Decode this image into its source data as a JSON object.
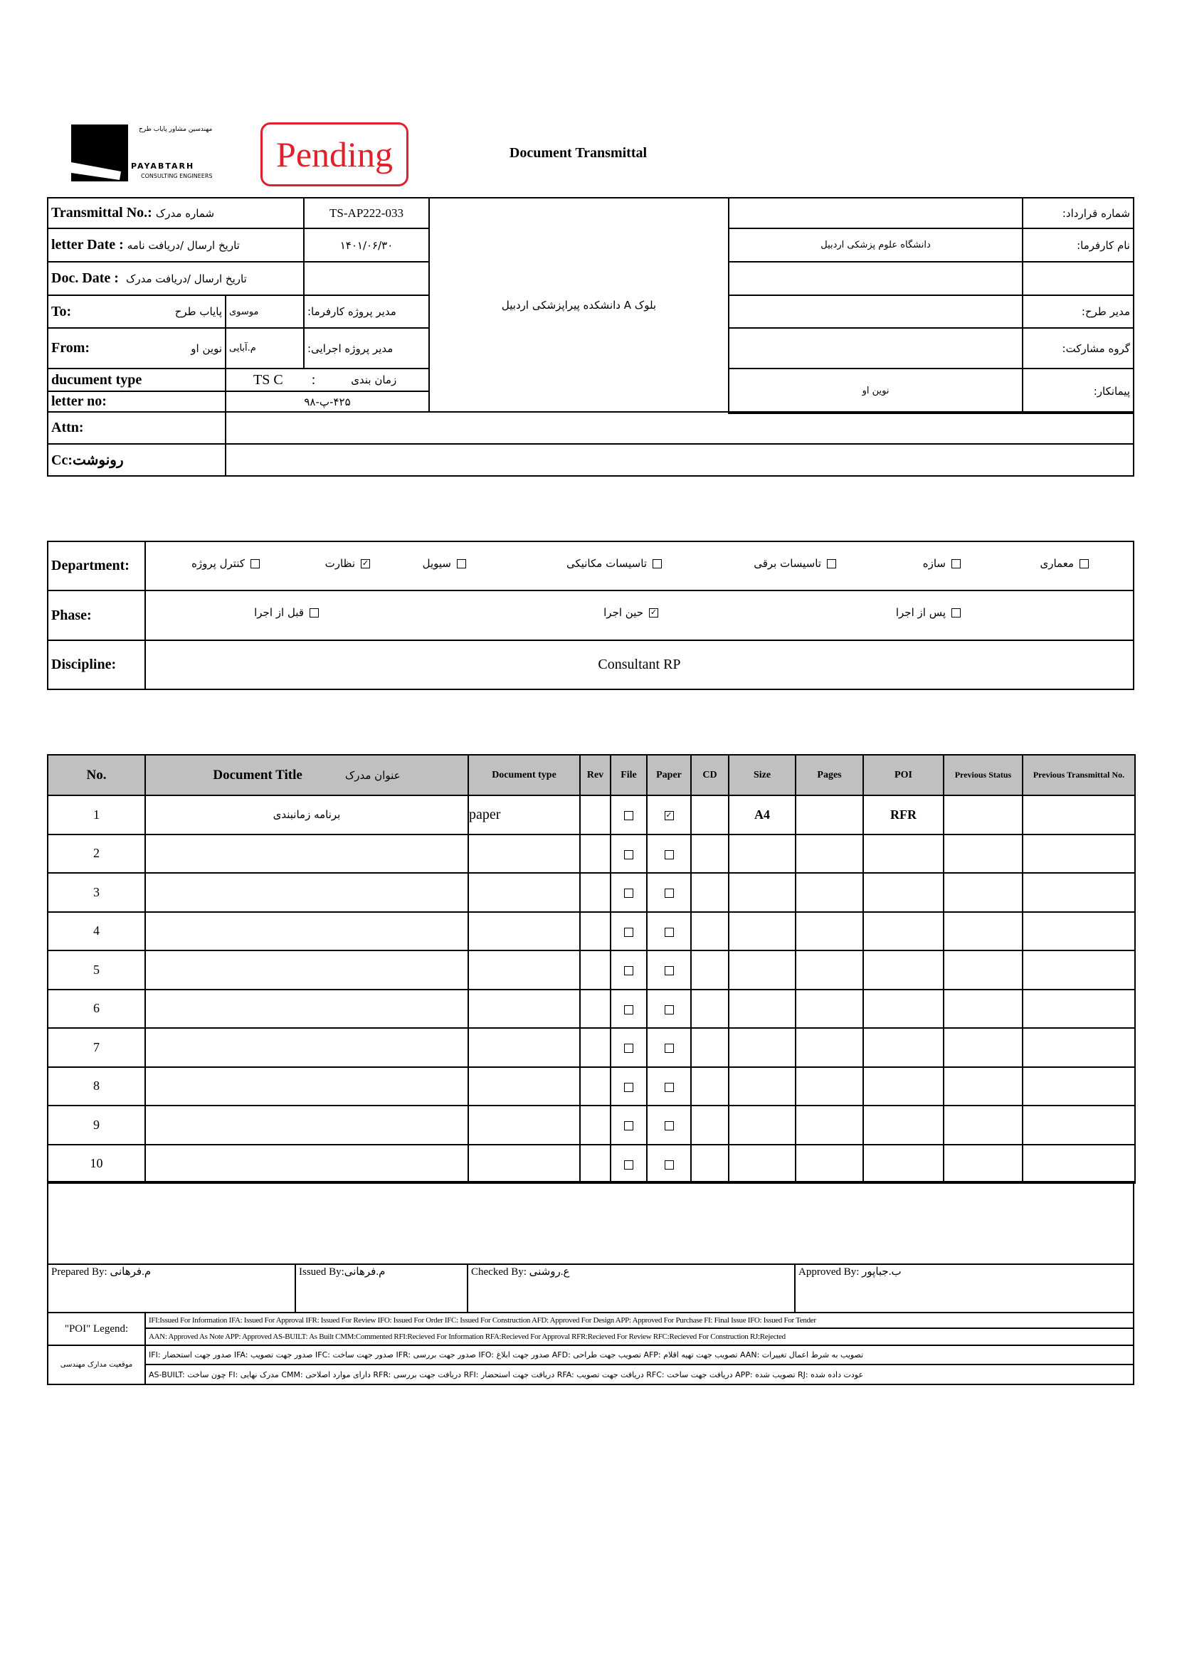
{
  "header": {
    "logo_text_fa": "مهندسین مشاور پایاب طرح",
    "logo_text_en": "PAYABTARH",
    "logo_sub": "CONSULTING ENGINEERS",
    "stamp": "Pending",
    "stamp_color": "#e0202a",
    "title": "Document Transmittal"
  },
  "info": {
    "transmittal_label": "Transmittal No.:",
    "transmittal_label_fa": "شماره مدرک",
    "transmittal_no": "TS-AP222-033",
    "letter_date_label": "letter Date :",
    "letter_date_label_fa": "تاریخ ارسال /دریافت نامه",
    "letter_date": "۱۴۰۱/۰۶/۳۰",
    "doc_date_label": "Doc. Date :",
    "doc_date_label_fa": "تاریخ ارسال /دریافت مدرک",
    "doc_date": "",
    "to_label": "To:",
    "to_value": "پایاب طرح",
    "to_person": "موسوی",
    "to_role": "مدیر پروژه کارفرما:",
    "from_label": "From:",
    "from_value": "نوین او",
    "from_person": "م.آبایی",
    "from_role": "مدیر پروژه اجرایی:",
    "doctype_label": "ducument type",
    "doctype_value": "TS C",
    "doctype_sep": ":",
    "doctype_fa": "زمان بندی",
    "letter_no_label": "letter no:",
    "letter_no": "۴۲۵-پ-۹۸",
    "attn_label": "Attn:",
    "attn": "",
    "cc_label": "Cc:رونوشت",
    "cc": "",
    "project": "بلوک A دانشکده پیراپزشکی اردبیل",
    "right": [
      {
        "label": "شماره قرارداد:",
        "value": ""
      },
      {
        "label": "نام کارفرما:",
        "value": "دانشگاه علوم پزشکی اردبیل"
      },
      {
        "label": "",
        "value": ""
      },
      {
        "label": "مدیر طرح:",
        "value": ""
      },
      {
        "label": "گروه مشارکت:",
        "value": ""
      },
      {
        "label": "پیمانکار:",
        "value": "نوین او"
      }
    ]
  },
  "classification": {
    "department_label": "Department:",
    "departments": [
      {
        "label": "معماری",
        "checked": false
      },
      {
        "label": "سازه",
        "checked": false
      },
      {
        "label": "تاسیسات برقی",
        "checked": false
      },
      {
        "label": "تاسیسات مکانیکی",
        "checked": false
      },
      {
        "label": "سیویل",
        "checked": false
      },
      {
        "label": "نظارت",
        "checked": true
      },
      {
        "label": "کنترل پروژه",
        "checked": false
      }
    ],
    "phase_label": "Phase:",
    "phases": [
      {
        "label": "پس از اجرا",
        "checked": false
      },
      {
        "label": "حین اجرا",
        "checked": true
      },
      {
        "label": "قبل از اجرا",
        "checked": false
      }
    ],
    "discipline_label": "Discipline:",
    "discipline": "Consultant RP"
  },
  "documents": {
    "headers": [
      "No.",
      "Document Title",
      "Document type",
      "Rev",
      "File",
      "Paper",
      "CD",
      "Size",
      "Pages",
      "POI",
      "Previous Status",
      "Previous Transmittal No."
    ],
    "title_header_fa": "عنوان مدرک",
    "rows": [
      {
        "no": "1",
        "title": "برنامه زمانبندی",
        "type": "paper",
        "rev": "",
        "file": false,
        "paper": true,
        "cd": "",
        "size": "A4",
        "pages": "",
        "poi": "RFR",
        "prev_status": "",
        "prev_no": ""
      },
      {
        "no": "2",
        "title": "",
        "type": "",
        "rev": "",
        "file": false,
        "paper": false,
        "cd": "",
        "size": "",
        "pages": "",
        "poi": "",
        "prev_status": "",
        "prev_no": ""
      },
      {
        "no": "3",
        "title": "",
        "type": "",
        "rev": "",
        "file": false,
        "paper": false,
        "cd": "",
        "size": "",
        "pages": "",
        "poi": "",
        "prev_status": "",
        "prev_no": ""
      },
      {
        "no": "4",
        "title": "",
        "type": "",
        "rev": "",
        "file": false,
        "paper": false,
        "cd": "",
        "size": "",
        "pages": "",
        "poi": "",
        "prev_status": "",
        "prev_no": ""
      },
      {
        "no": "5",
        "title": "",
        "type": "",
        "rev": "",
        "file": false,
        "paper": false,
        "cd": "",
        "size": "",
        "pages": "",
        "poi": "",
        "prev_status": "",
        "prev_no": ""
      },
      {
        "no": "6",
        "title": "",
        "type": "",
        "rev": "",
        "file": false,
        "paper": false,
        "cd": "",
        "size": "",
        "pages": "",
        "poi": "",
        "prev_status": "",
        "prev_no": ""
      },
      {
        "no": "7",
        "title": "",
        "type": "",
        "rev": "",
        "file": false,
        "paper": false,
        "cd": "",
        "size": "",
        "pages": "",
        "poi": "",
        "prev_status": "",
        "prev_no": ""
      },
      {
        "no": "8",
        "title": "",
        "type": "",
        "rev": "",
        "file": false,
        "paper": false,
        "cd": "",
        "size": "",
        "pages": "",
        "poi": "",
        "prev_status": "",
        "prev_no": ""
      },
      {
        "no": "9",
        "title": "",
        "type": "",
        "rev": "",
        "file": false,
        "paper": false,
        "cd": "",
        "size": "",
        "pages": "",
        "poi": "",
        "prev_status": "",
        "prev_no": ""
      },
      {
        "no": "10",
        "title": "",
        "type": "",
        "rev": "",
        "file": false,
        "paper": false,
        "cd": "",
        "size": "",
        "pages": "",
        "poi": "",
        "prev_status": "",
        "prev_no": ""
      }
    ]
  },
  "signatures": {
    "prepared": "Prepared By: م.فرهانی",
    "issued": "Issued By:م.فرهانی",
    "checked": "Checked By: ع.روشنی",
    "approved": "Approved By: ب.جباپور"
  },
  "legend": {
    "poi_label": "\"POI\" Legend:",
    "poi_line1": "IFI:Issued For Information  IFA: Issued For Approval  IFR: Issued For Review  IFO: Issued For Order  IFC: Issued For Construction AFD: Approved For Design APP: Approved For Purchase  FI: Final Issue  IFO: Issued For Tender",
    "poi_line2": "AAN: Approved As Note  APP: Approved  AS-BUILT: As Built CMM:Commented  RFI:Recieved For Information  RFA:Recieved For Approval  RFR:Recieved For Review  RFC:Recieved For Construction  RJ:Rejected",
    "fa_label": "موقعیت مدارک مهندسی",
    "fa_line1": "IFI: صدور جهت استحضار   IFA: صدور جهت تصویب  IFC: صدور جهت ساخت  IFR: صدور جهت بررسی  IFO: صدور جهت ابلاغ   AFD: تصویب جهت طراحی   AFP: تصویب جهت تهیه اقلام   AAN: تصویب به شرط اعمال تغییرات",
    "fa_line2": "AS-BUILT: چون ساخت  FI: مدرک نهایی  CMM: دارای موارد اصلاحی   RFR: دریافت جهت بررسی  RFI: دریافت جهت استحضار  RFA: دریافت جهت تصویب   RFC: دریافت جهت ساخت   APP: تصویب شده   RJ: عودت داده شده"
  }
}
